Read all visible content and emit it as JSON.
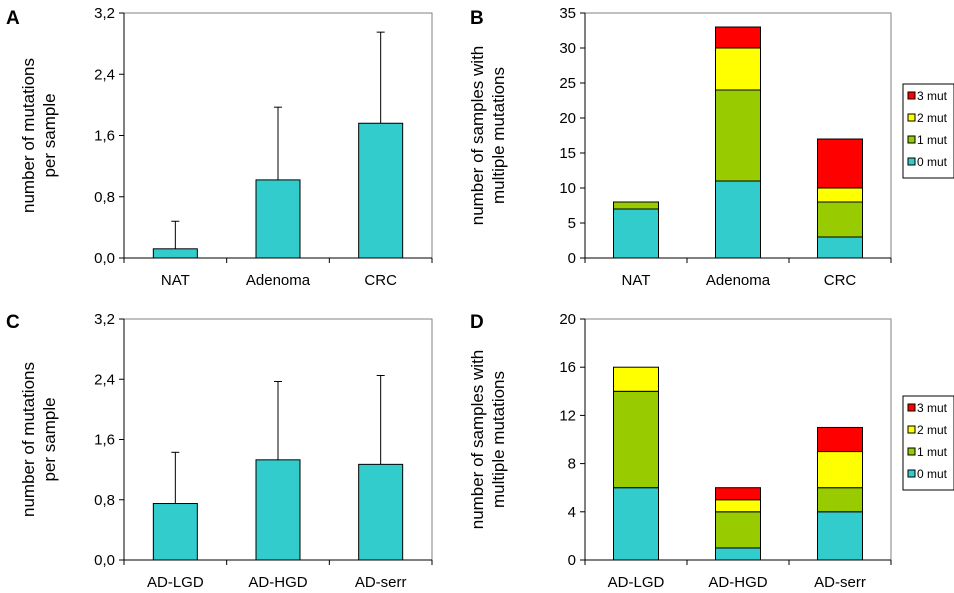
{
  "colors": {
    "teal": "#33cccc",
    "green": "#99cc00",
    "yellow": "#ffff00",
    "red": "#ff0000",
    "stroke": "#000000"
  },
  "chart_data": [
    {
      "panel": "A",
      "type": "bar",
      "categories": [
        "NAT",
        "Adenoma",
        "CRC"
      ],
      "values": [
        0.12,
        1.02,
        1.76
      ],
      "error_up": [
        0.48,
        1.97,
        2.95
      ],
      "ylabel": [
        "number of mutations",
        "per sample"
      ],
      "ylim": [
        0,
        3.2
      ],
      "yticks": [
        "0,0",
        "0,8",
        "1,6",
        "2,4",
        "3,2"
      ],
      "grid": false
    },
    {
      "panel": "B",
      "type": "bar",
      "stacked": true,
      "categories": [
        "NAT",
        "Adenoma",
        "CRC"
      ],
      "series": [
        {
          "name": "0 mut",
          "color": "#33cccc",
          "values": [
            7,
            11,
            3
          ]
        },
        {
          "name": "1 mut",
          "color": "#99cc00",
          "values": [
            1,
            13,
            5
          ]
        },
        {
          "name": "2 mut",
          "color": "#ffff00",
          "values": [
            0,
            6,
            2
          ]
        },
        {
          "name": "3 mut",
          "color": "#ff0000",
          "values": [
            0,
            3,
            7
          ]
        }
      ],
      "ylabel": [
        "number of samples with",
        "multiple mutations"
      ],
      "ylim": [
        0,
        35
      ],
      "yticks": [
        "0",
        "5",
        "10",
        "15",
        "20",
        "25",
        "30",
        "35"
      ],
      "legend": "right",
      "grid": false
    },
    {
      "panel": "C",
      "type": "bar",
      "categories": [
        "AD-LGD",
        "AD-HGD",
        "AD-serr"
      ],
      "values": [
        0.75,
        1.33,
        1.27
      ],
      "error_up": [
        1.43,
        2.37,
        2.45
      ],
      "ylabel": [
        "number of mutations",
        "per sample"
      ],
      "ylim": [
        0,
        3.2
      ],
      "yticks": [
        "0,0",
        "0,8",
        "1,6",
        "2,4",
        "3,2"
      ],
      "grid": false
    },
    {
      "panel": "D",
      "type": "bar",
      "stacked": true,
      "categories": [
        "AD-LGD",
        "AD-HGD",
        "AD-serr"
      ],
      "series": [
        {
          "name": "0 mut",
          "color": "#33cccc",
          "values": [
            6,
            1,
            4
          ]
        },
        {
          "name": "1 mut",
          "color": "#99cc00",
          "values": [
            8,
            3,
            2
          ]
        },
        {
          "name": "2 mut",
          "color": "#ffff00",
          "values": [
            2,
            1,
            3
          ]
        },
        {
          "name": "3 mut",
          "color": "#ff0000",
          "values": [
            0,
            1,
            2
          ]
        }
      ],
      "ylabel": [
        "number of samples with",
        "multiple mutations"
      ],
      "ylim": [
        0,
        20
      ],
      "yticks": [
        "0",
        "4",
        "8",
        "12",
        "16",
        "20"
      ],
      "legend": "right",
      "grid": false
    }
  ]
}
